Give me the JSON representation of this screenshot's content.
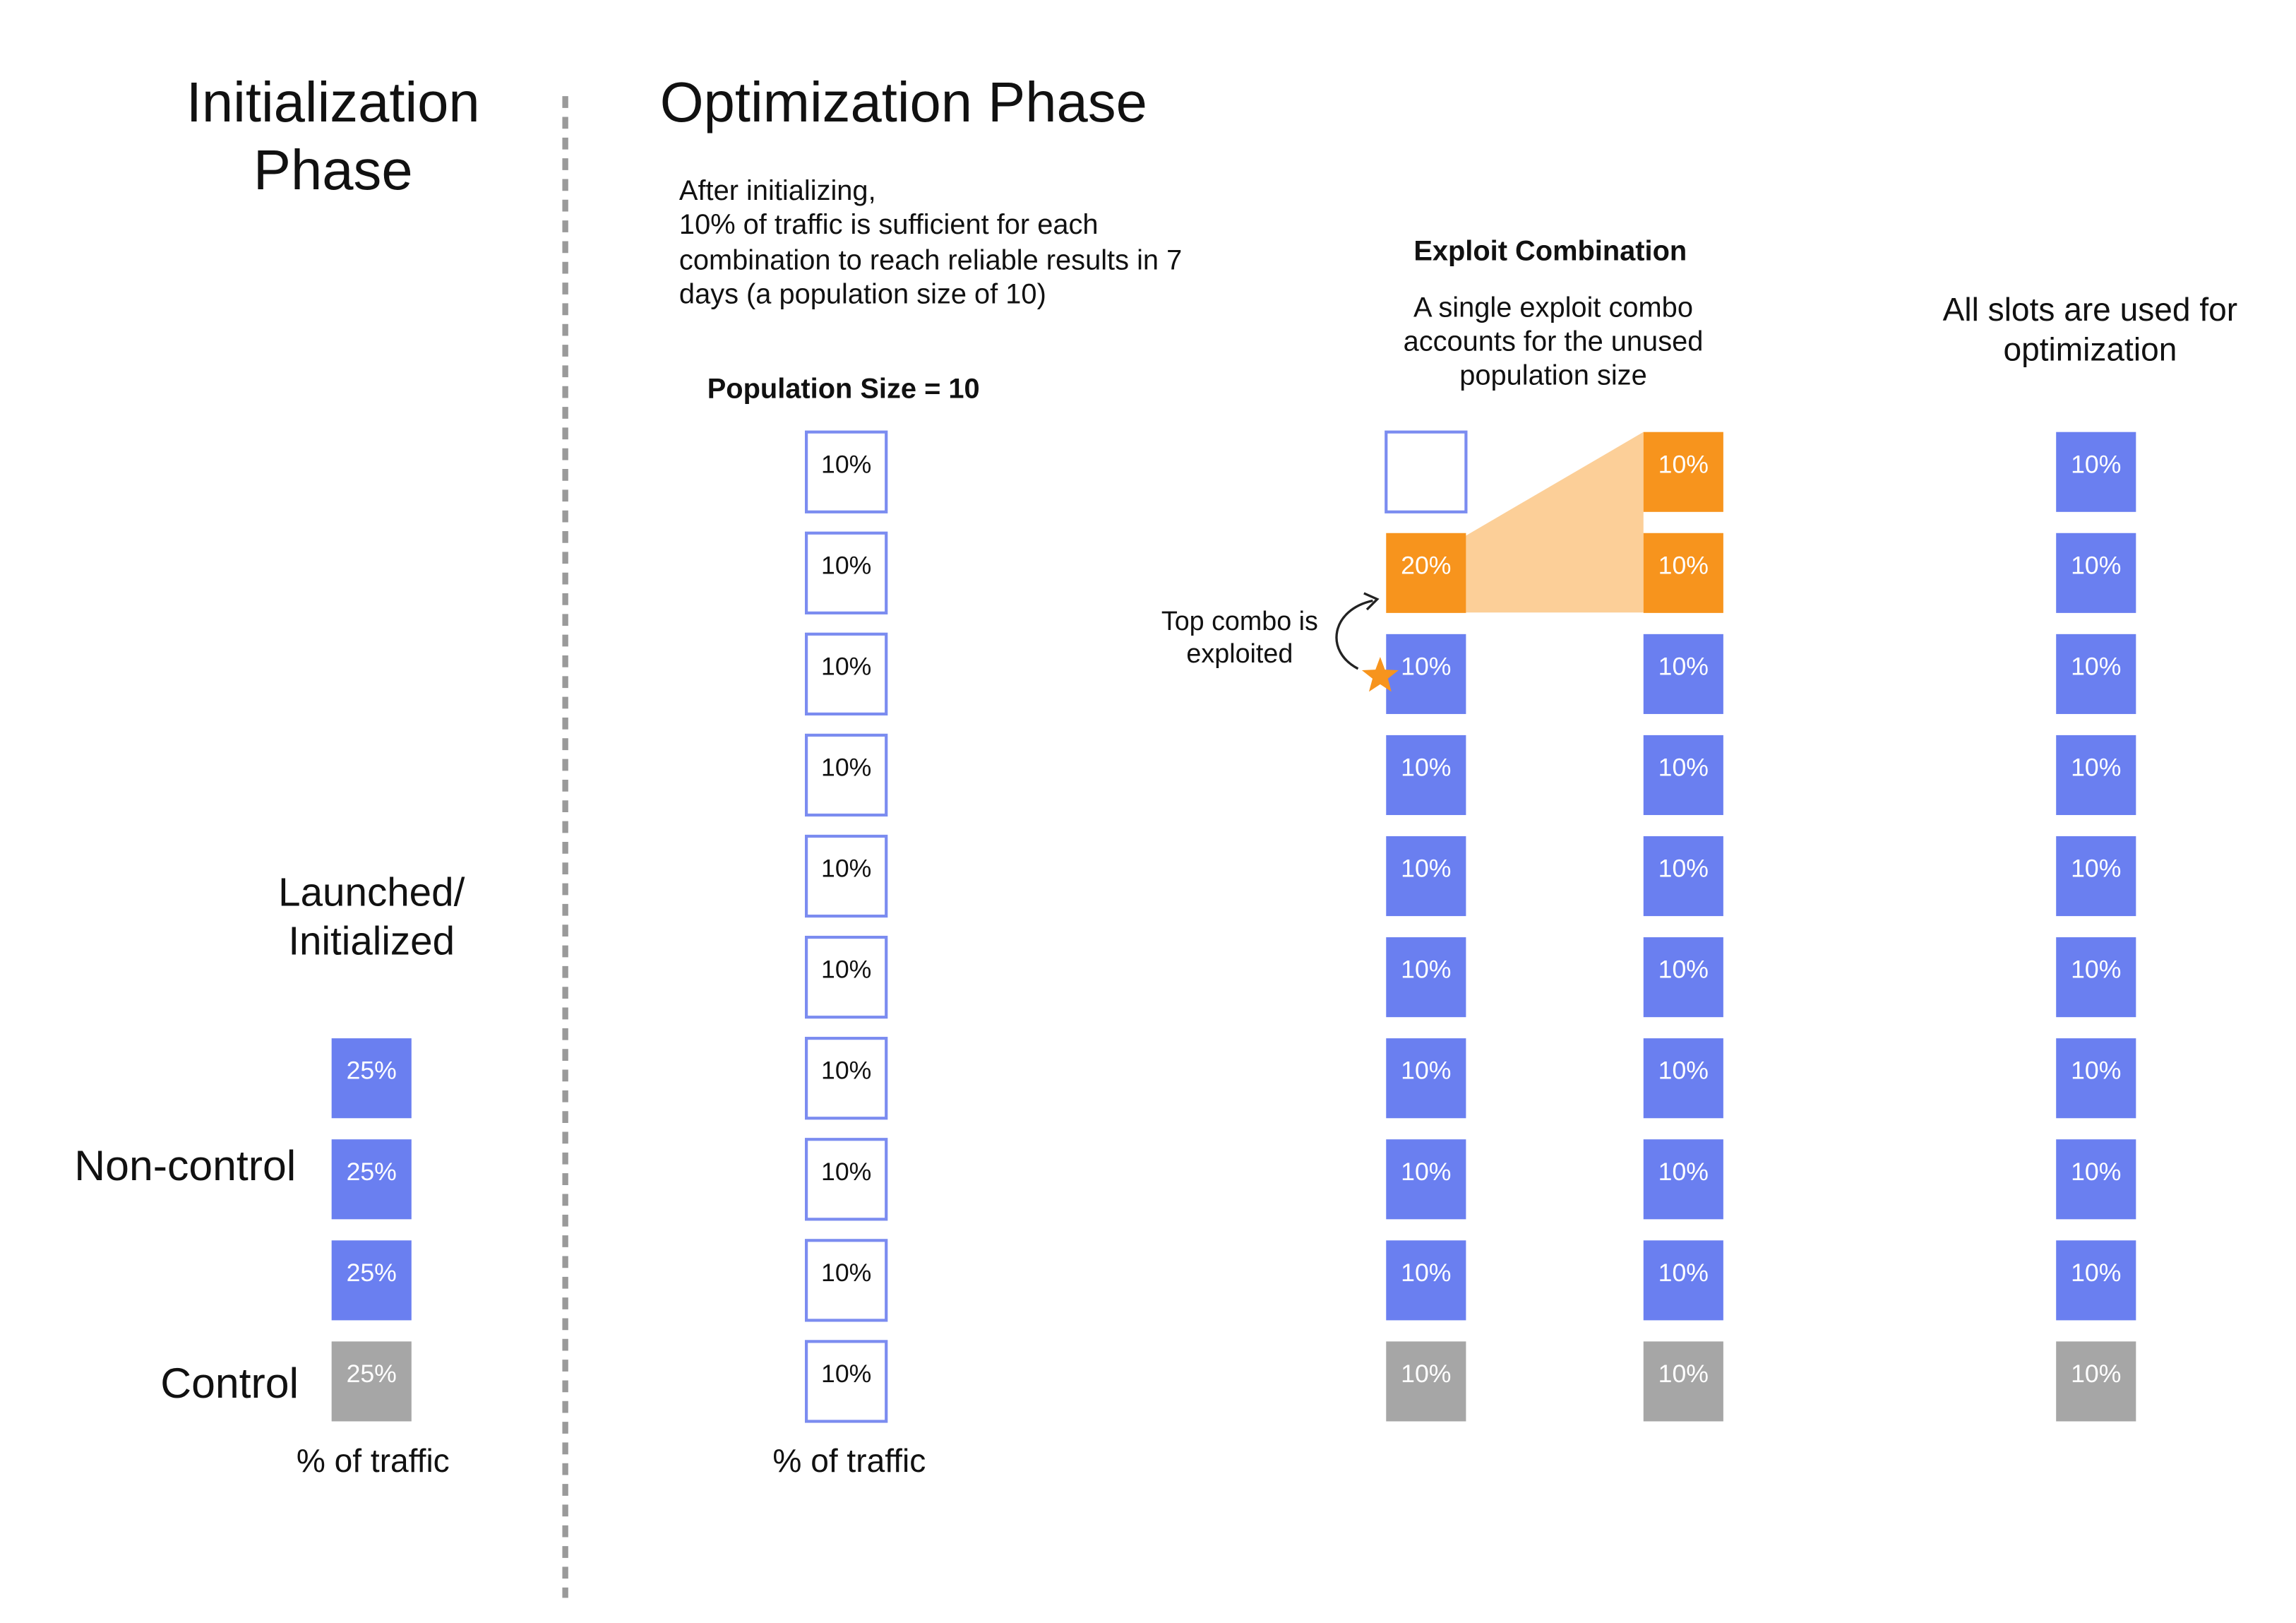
{
  "initialization": {
    "title": [
      "Initialization",
      "Phase"
    ],
    "launched_label": [
      "Launched/",
      "Initialized"
    ],
    "noncontrol_label": "Non-control",
    "control_label": "Control",
    "cells": [
      {
        "label": "25%",
        "fill": "#6a7ff0"
      },
      {
        "label": "25%",
        "fill": "#6a7ff0"
      },
      {
        "label": "25%",
        "fill": "#6a7ff0"
      },
      {
        "label": "25%",
        "fill": "#a6a6a6"
      }
    ],
    "footer": "% of traffic"
  },
  "optimization": {
    "title": "Optimization Phase",
    "description": [
      "After initializing,",
      "10% of traffic is sufficient for each",
      "combination to reach reliable results in 7",
      "days (a population size of 10)"
    ],
    "population_label": "Population Size = 10",
    "cells": [
      {
        "label": "10%",
        "fill": "#ffffff"
      },
      {
        "label": "10%",
        "fill": "#ffffff"
      },
      {
        "label": "10%",
        "fill": "#ffffff"
      },
      {
        "label": "10%",
        "fill": "#ffffff"
      },
      {
        "label": "10%",
        "fill": "#ffffff"
      },
      {
        "label": "10%",
        "fill": "#ffffff"
      },
      {
        "label": "10%",
        "fill": "#ffffff"
      },
      {
        "label": "10%",
        "fill": "#ffffff"
      },
      {
        "label": "10%",
        "fill": "#ffffff"
      },
      {
        "label": "10%",
        "fill": "#ffffff"
      }
    ],
    "footer": "% of traffic"
  },
  "exploit": {
    "heading": "Exploit Combination",
    "description": [
      "A single exploit combo",
      "accounts for the unused",
      "population size"
    ],
    "annotation": [
      "Top combo is",
      "exploited"
    ],
    "columns": [
      {
        "cells": [
          {
            "label": "20%",
            "fill": "#f7941d"
          },
          {
            "label": "10%",
            "fill": "#6a7ff0"
          },
          {
            "label": "10%",
            "fill": "#6a7ff0"
          },
          {
            "label": "10%",
            "fill": "#6a7ff0"
          },
          {
            "label": "10%",
            "fill": "#6a7ff0"
          },
          {
            "label": "10%",
            "fill": "#6a7ff0"
          },
          {
            "label": "10%",
            "fill": "#6a7ff0"
          },
          {
            "label": "10%",
            "fill": "#6a7ff0"
          },
          {
            "label": "10%",
            "fill": "#a6a6a6"
          }
        ]
      },
      {
        "cells": [
          {
            "label": "10%",
            "fill": "#f7941d"
          },
          {
            "label": "10%",
            "fill": "#f7941d"
          },
          {
            "label": "10%",
            "fill": "#6a7ff0"
          },
          {
            "label": "10%",
            "fill": "#6a7ff0"
          },
          {
            "label": "10%",
            "fill": "#6a7ff0"
          },
          {
            "label": "10%",
            "fill": "#6a7ff0"
          },
          {
            "label": "10%",
            "fill": "#6a7ff0"
          },
          {
            "label": "10%",
            "fill": "#6a7ff0"
          },
          {
            "label": "10%",
            "fill": "#6a7ff0"
          },
          {
            "label": "10%",
            "fill": "#a6a6a6"
          }
        ]
      }
    ]
  },
  "final": {
    "heading": [
      "All slots are used for",
      "optimization"
    ],
    "cells": [
      {
        "label": "10%",
        "fill": "#6a7ff0"
      },
      {
        "label": "10%",
        "fill": "#6a7ff0"
      },
      {
        "label": "10%",
        "fill": "#6a7ff0"
      },
      {
        "label": "10%",
        "fill": "#6a7ff0"
      },
      {
        "label": "10%",
        "fill": "#6a7ff0"
      },
      {
        "label": "10%",
        "fill": "#6a7ff0"
      },
      {
        "label": "10%",
        "fill": "#6a7ff0"
      },
      {
        "label": "10%",
        "fill": "#6a7ff0"
      },
      {
        "label": "10%",
        "fill": "#6a7ff0"
      },
      {
        "label": "10%",
        "fill": "#a6a6a6"
      }
    ]
  }
}
